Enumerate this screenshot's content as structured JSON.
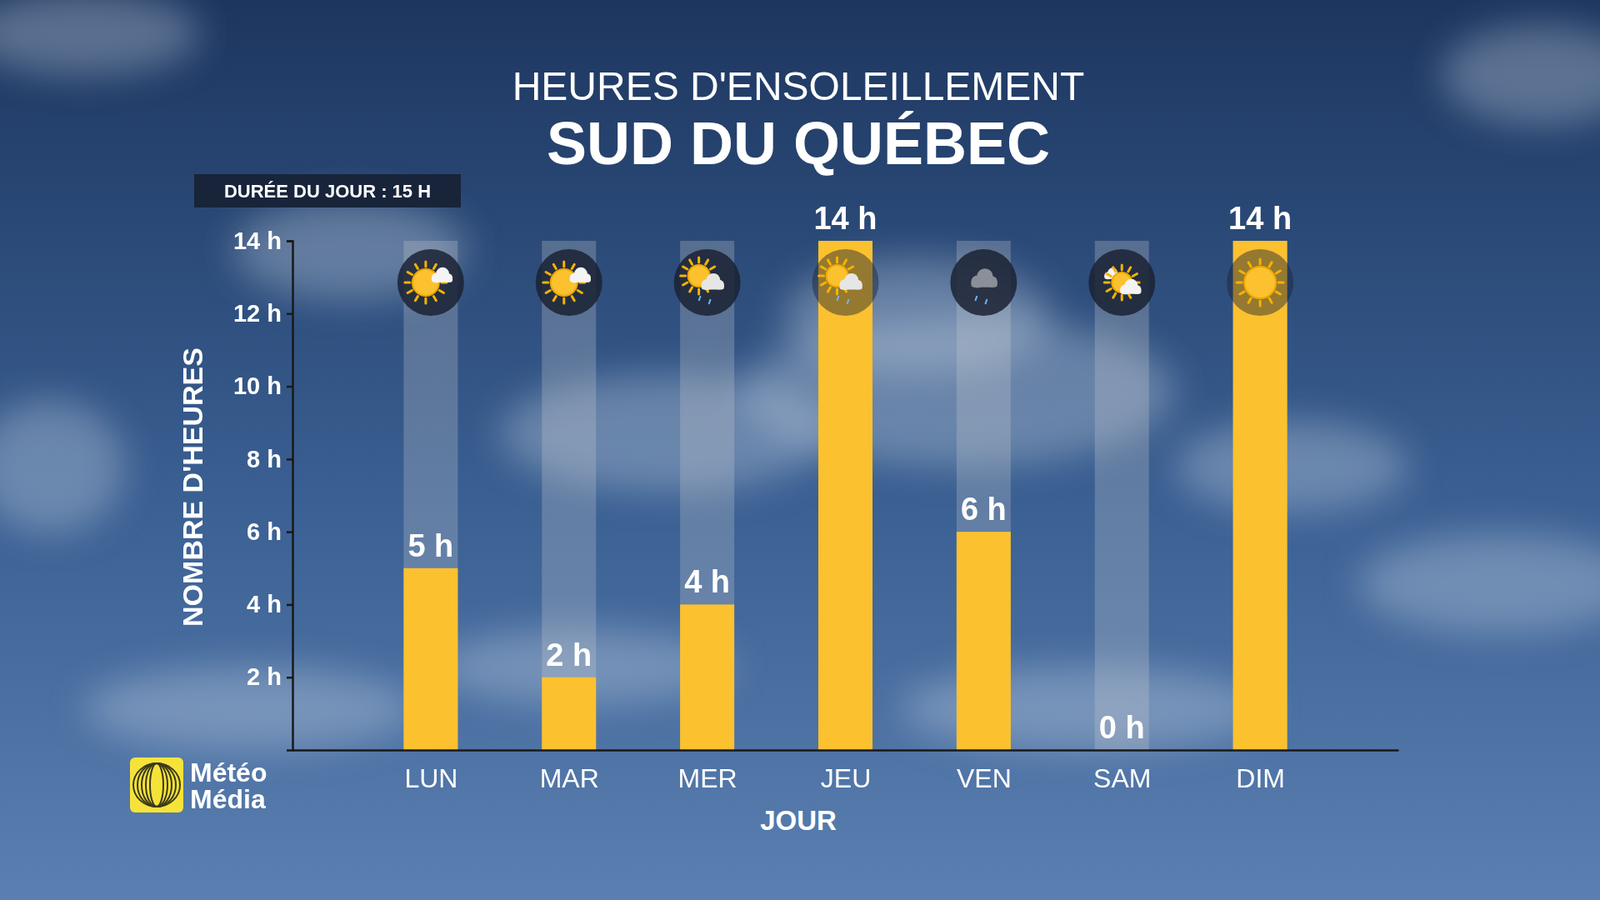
{
  "chart_data": {
    "type": "bar",
    "title": "HEURES D'ENSOLEILLEMENT",
    "subtitle": "SUD DU QUÉBEC",
    "x_label": "JOUR",
    "y_label": "NOMBRE D'HEURES",
    "categories": [
      "LUN",
      "MAR",
      "MER",
      "JEU",
      "VEN",
      "SAM",
      "DIM"
    ],
    "values": [
      5,
      2,
      4,
      14,
      6,
      0,
      14
    ],
    "value_labels": [
      "5 h",
      "2 h",
      "4 h",
      "14 h",
      "6 h",
      "0 h",
      "14 h"
    ],
    "data_labels": true,
    "color": "#fbc12f",
    "grid": false,
    "ylim": [
      0,
      14
    ],
    "yticks": [
      {
        "value": 2,
        "label": "2 h"
      },
      {
        "value": 4,
        "label": "4 h"
      },
      {
        "value": 6,
        "label": "6 h"
      },
      {
        "value": 8,
        "label": "8 h"
      },
      {
        "value": 10,
        "label": "10 h"
      },
      {
        "value": 12,
        "label": "12 h"
      },
      {
        "value": 14,
        "label": "14 h"
      }
    ],
    "annotations": [
      "DURÉE DU JOUR : 15 H",
      "Météo",
      "Média"
    ]
  }
}
